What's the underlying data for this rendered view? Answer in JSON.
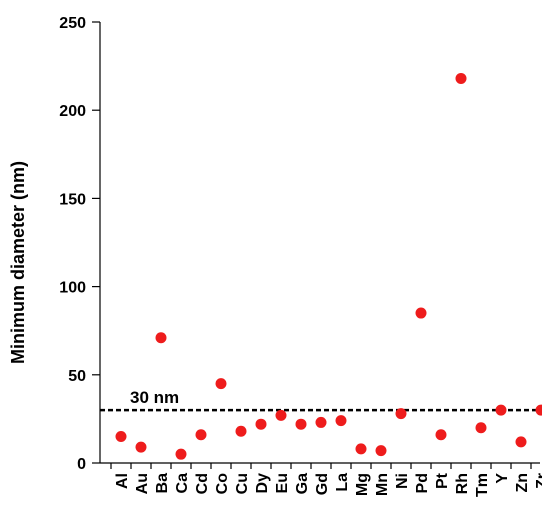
{
  "chart_data": {
    "type": "scatter",
    "categories": [
      "Al",
      "Au",
      "Ba",
      "Ca",
      "Cd",
      "Co",
      "Cu",
      "Dy",
      "Eu",
      "Ga",
      "Gd",
      "La",
      "Mg",
      "Mn",
      "Ni",
      "Pd",
      "Pt",
      "Rh",
      "Tm",
      "Y",
      "Zn",
      "Zr"
    ],
    "values": [
      15,
      9,
      71,
      5,
      16,
      45,
      18,
      22,
      27,
      22,
      23,
      24,
      8,
      7,
      28,
      85,
      16,
      218,
      20,
      30,
      12,
      30
    ],
    "ylabel": "Minimum diameter (nm)",
    "xlabel": "",
    "ylim": [
      0,
      250
    ],
    "yticks": [
      0,
      50,
      100,
      150,
      200,
      250
    ],
    "reference_line": {
      "value": 30,
      "label": "30 nm",
      "style": "dashed"
    },
    "marker_color": "#ee1c1c",
    "grid": false,
    "legend": "none"
  }
}
